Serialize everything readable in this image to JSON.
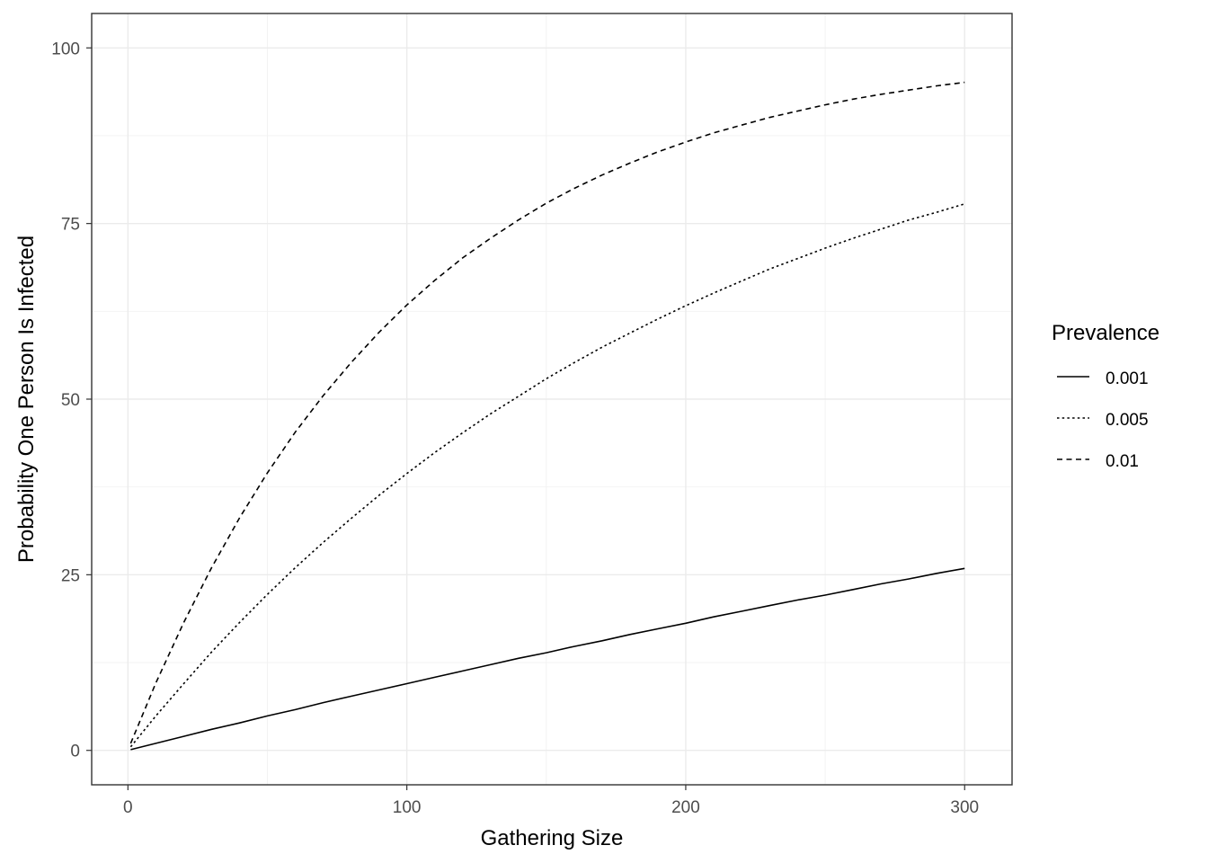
{
  "chart_data": {
    "type": "line",
    "title": "",
    "xlabel": "Gathering Size",
    "ylabel": "Probability One Person Is Infected",
    "xlim": [
      -13,
      317
    ],
    "ylim": [
      -4.9,
      104.9
    ],
    "xticks": [
      0,
      100,
      200,
      300
    ],
    "yticks": [
      0,
      25,
      50,
      75,
      100
    ],
    "x_tick_labels": [
      "0",
      "100",
      "200",
      "300"
    ],
    "y_tick_labels": [
      "0",
      "25",
      "50",
      "75",
      "100"
    ],
    "grid": true,
    "legend": {
      "title": "Prevalence",
      "placement": "right",
      "entries": [
        {
          "label": "0.001",
          "linetype": "solid"
        },
        {
          "label": "0.005",
          "linetype": "dotted"
        },
        {
          "label": "0.01",
          "linetype": "dashed"
        }
      ]
    },
    "x": [
      1,
      10,
      20,
      30,
      40,
      50,
      60,
      70,
      80,
      90,
      100,
      110,
      120,
      130,
      140,
      150,
      160,
      170,
      180,
      190,
      200,
      210,
      220,
      230,
      240,
      250,
      260,
      270,
      280,
      290,
      300
    ],
    "series": [
      {
        "name": "0.001",
        "linetype": "solid",
        "values": [
          0.1,
          1.0,
          2.0,
          3.0,
          3.9,
          4.9,
          5.8,
          6.8,
          7.7,
          8.6,
          9.5,
          10.4,
          11.3,
          12.2,
          13.1,
          13.9,
          14.8,
          15.6,
          16.5,
          17.3,
          18.1,
          19.0,
          19.8,
          20.6,
          21.4,
          22.1,
          22.9,
          23.7,
          24.4,
          25.2,
          25.9
        ]
      },
      {
        "name": "0.005",
        "linetype": "dotted",
        "values": [
          0.5,
          4.9,
          9.5,
          14.0,
          18.2,
          22.2,
          26.0,
          29.6,
          33.0,
          36.3,
          39.4,
          42.4,
          45.2,
          47.9,
          50.4,
          52.9,
          55.2,
          57.4,
          59.4,
          61.4,
          63.3,
          65.1,
          66.8,
          68.5,
          70.0,
          71.5,
          72.9,
          74.2,
          75.5,
          76.6,
          77.8
        ]
      },
      {
        "name": "0.01",
        "linetype": "dashed",
        "values": [
          1.0,
          9.6,
          18.2,
          26.0,
          33.1,
          39.5,
          45.3,
          50.5,
          55.2,
          59.5,
          63.4,
          66.9,
          70.1,
          72.9,
          75.5,
          77.9,
          80.0,
          81.9,
          83.6,
          85.2,
          86.6,
          87.9,
          89.0,
          90.1,
          91.0,
          91.9,
          92.7,
          93.4,
          94.0,
          94.6,
          95.1
        ]
      }
    ]
  }
}
